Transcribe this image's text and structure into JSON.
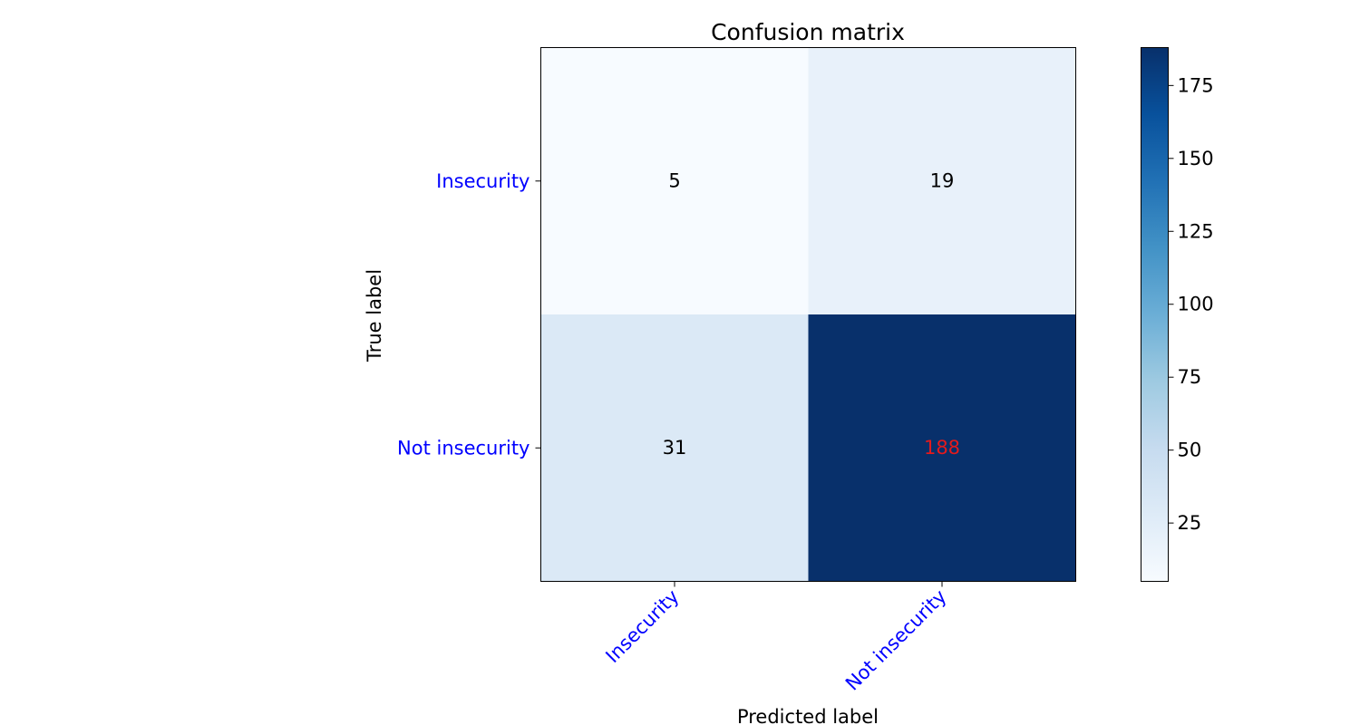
{
  "chart_data": {
    "type": "heatmap",
    "title": "Confusion matrix",
    "xlabel": "Predicted label",
    "ylabel": "True label",
    "row_labels": [
      "Insecurity",
      "Not insecurity"
    ],
    "col_labels": [
      "Insecurity",
      "Not insecurity"
    ],
    "values": [
      [
        5,
        19
      ],
      [
        31,
        188
      ]
    ],
    "highlight_cell": {
      "row": 1,
      "col": 1,
      "color": "#e31a1c"
    },
    "tick_label_color": "#0000ff",
    "colormap": "Blues",
    "colorbar": {
      "min": 5,
      "max": 188,
      "ticks": [
        25,
        50,
        75,
        100,
        125,
        150,
        175
      ]
    }
  }
}
